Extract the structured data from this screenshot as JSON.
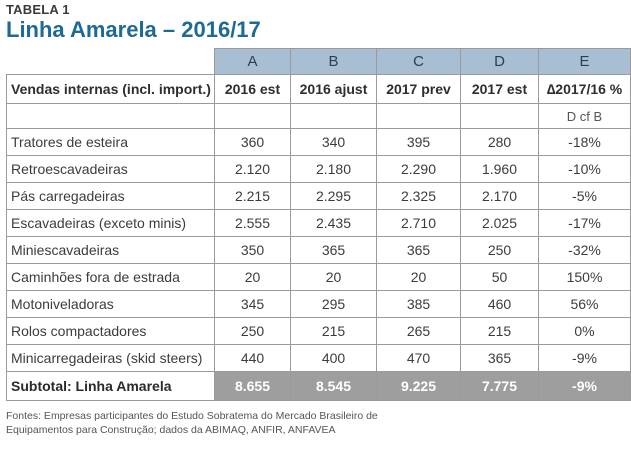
{
  "header": {
    "label": "TABELA 1",
    "title": "Linha Amarela – 2016/17"
  },
  "table": {
    "column_letters": [
      "A",
      "B",
      "C",
      "D",
      "E"
    ],
    "row_header_label": "Vendas internas (incl. import.)",
    "column_headers": [
      "2016 est",
      "2016 ajust",
      "2017 prev",
      "2017 est",
      "∆2017/16 %"
    ],
    "sub_header_note": "D cf B",
    "rows": [
      {
        "label": "Tratores de esteira",
        "values": [
          "360",
          "340",
          "395",
          "280",
          "-18%"
        ]
      },
      {
        "label": "Retroescavadeiras",
        "values": [
          "2.120",
          "2.180",
          "2.290",
          "1.960",
          "-10%"
        ]
      },
      {
        "label": "Pás carregadeiras",
        "values": [
          "2.215",
          "2.295",
          "2.325",
          "2.170",
          "-5%"
        ]
      },
      {
        "label": "Escavadeiras (exceto minis)",
        "values": [
          "2.555",
          "2.435",
          "2.710",
          "2.025",
          "-17%"
        ]
      },
      {
        "label": "Miniescavadeiras",
        "values": [
          "350",
          "365",
          "365",
          "250",
          "-32%"
        ]
      },
      {
        "label": "Caminhões fora de estrada",
        "values": [
          "20",
          "20",
          "20",
          "50",
          "150%"
        ]
      },
      {
        "label": "Motoniveladoras",
        "values": [
          "345",
          "295",
          "385",
          "460",
          "56%"
        ]
      },
      {
        "label": "Rolos compactadores",
        "values": [
          "250",
          "215",
          "265",
          "215",
          "0%"
        ]
      },
      {
        "label": "Minicarregadeiras (skid steers)",
        "values": [
          "440",
          "400",
          "470",
          "365",
          "-9%"
        ]
      }
    ],
    "subtotal": {
      "label": "Subtotal: Linha Amarela",
      "values": [
        "8.655",
        "8.545",
        "9.225",
        "7.775",
        "-9%"
      ]
    }
  },
  "footer": {
    "line1": "Fontes: Empresas participantes do Estudo Sobratema do Mercado Brasileiro de",
    "line2": "Equipamentos para Construção; dados da ABIMAQ, ANFIR, ANFAVEA"
  },
  "colors": {
    "title": "#1d6a96",
    "column_letter_bg": "#a8bfd3",
    "subtotal_bg": "#9e9e9e"
  }
}
